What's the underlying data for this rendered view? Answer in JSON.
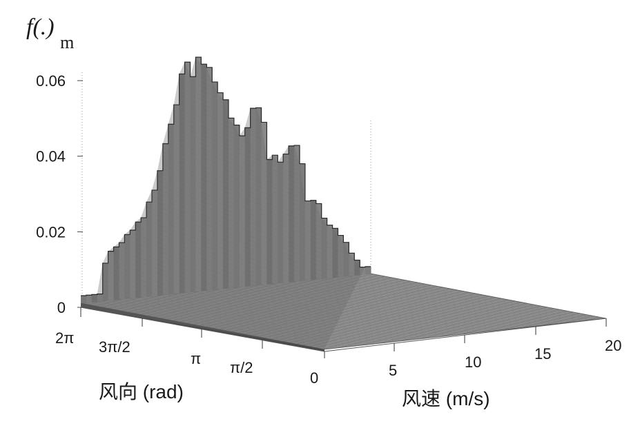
{
  "chart_data": {
    "type": "bar3d",
    "title": "",
    "zlabel": "f(.)",
    "zlabel_sub": "m",
    "xlabel": "风向 (rad)",
    "ylabel": "风速 (m/s)",
    "zlim": [
      0,
      0.065
    ],
    "z_ticks": [
      "0",
      "0.02",
      "0.04",
      "0.06"
    ],
    "z_tick_values": [
      0,
      0.02,
      0.04,
      0.06
    ],
    "direction_ticks": [
      "2π",
      "3π/2",
      "π",
      "π/2",
      "0"
    ],
    "speed_ticks": [
      "0",
      "5",
      "10",
      "15",
      "20"
    ],
    "speed_range": [
      0,
      20
    ],
    "grid": false,
    "front_profile_heights": [
      0.002,
      0.002,
      0.002,
      0.002,
      0.01,
      0.013,
      0.014,
      0.015,
      0.017,
      0.018,
      0.02,
      0.021,
      0.025,
      0.028,
      0.033,
      0.04,
      0.045,
      0.05,
      0.058,
      0.061,
      0.057,
      0.062,
      0.06,
      0.059,
      0.055,
      0.052,
      0.05,
      0.045,
      0.043,
      0.04,
      0.042,
      0.047,
      0.047,
      0.043,
      0.033,
      0.034,
      0.032,
      0.034,
      0.036,
      0.036,
      0.031,
      0.021,
      0.021,
      0.02,
      0.016,
      0.014,
      0.013,
      0.011,
      0.009,
      0.006,
      0.004,
      0.002,
      0.002
    ]
  }
}
